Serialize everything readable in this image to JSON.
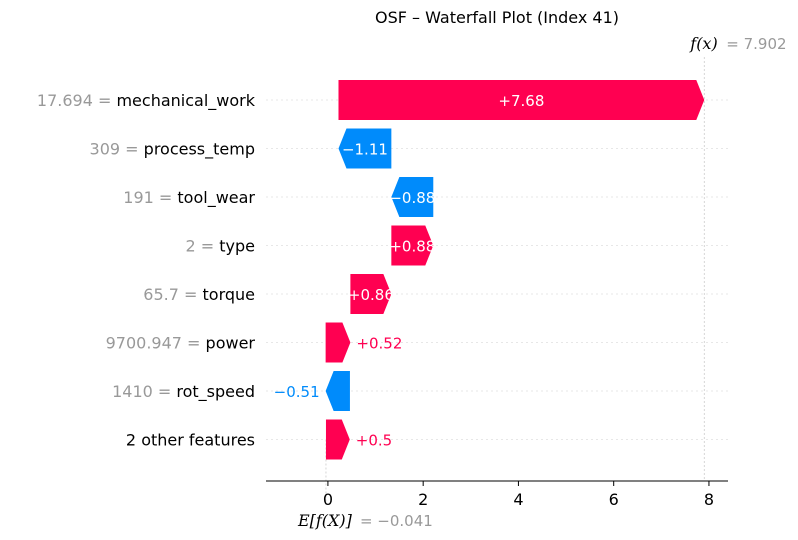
{
  "chart_data": {
    "type": "waterfall",
    "title": "OSF – Waterfall Plot (Index 41)",
    "fx_label": "f(x)",
    "fx_value_text": "= 7.902",
    "fx_value": 7.902,
    "base_label": "E[f(X)]",
    "base_value_text": "= −0.041",
    "base_value": -0.041,
    "xlim": [
      -1.3,
      8.4
    ],
    "xticks": [
      0,
      2,
      4,
      6,
      8
    ],
    "colors": {
      "positive": "#ff0051",
      "negative": "#008bfb",
      "value_text": "#999999",
      "grid": "#cccccc"
    },
    "rows": [
      {
        "feature_value": "17.694",
        "feature": "mechanical_work",
        "start": 0.222,
        "end": 7.902,
        "contribution": 7.68,
        "label": "+7.68",
        "label_inside": true
      },
      {
        "feature_value": "309",
        "feature": "process_temp",
        "start": 1.332,
        "end": 0.222,
        "contribution": -1.11,
        "label": "−1.11",
        "label_inside": true
      },
      {
        "feature_value": "191",
        "feature": "tool_wear",
        "start": 2.212,
        "end": 1.332,
        "contribution": -0.88,
        "label": "−0.88",
        "label_inside": true
      },
      {
        "feature_value": "2",
        "feature": "type",
        "start": 1.332,
        "end": 2.212,
        "contribution": 0.88,
        "label": "+0.88",
        "label_inside": true
      },
      {
        "feature_value": "65.7",
        "feature": "torque",
        "start": 0.472,
        "end": 1.332,
        "contribution": 0.86,
        "label": "+0.86",
        "label_inside": true
      },
      {
        "feature_value": "9700.947",
        "feature": "power",
        "start": -0.048,
        "end": 0.472,
        "contribution": 0.52,
        "label": "+0.52",
        "label_inside": false
      },
      {
        "feature_value": "1410",
        "feature": "rot_speed",
        "start": 0.462,
        "end": -0.048,
        "contribution": -0.51,
        "label": "−0.51",
        "label_inside": false
      },
      {
        "feature_value": "",
        "feature": "2 other features",
        "start": -0.041,
        "end": 0.459,
        "contribution": 0.5,
        "label": "+0.5",
        "label_inside": false
      }
    ]
  }
}
